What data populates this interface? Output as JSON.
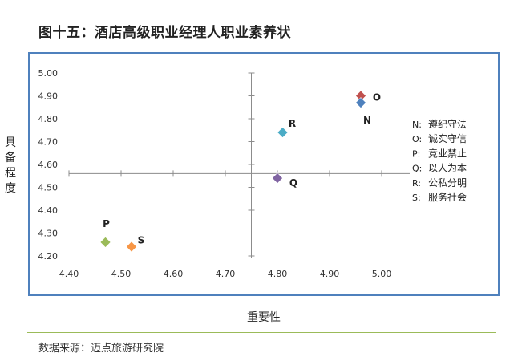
{
  "figure": {
    "title": "图十五：酒店高级职业经理人职业素养状",
    "source": "数据来源：迈点旅游研究院"
  },
  "chart_data": {
    "type": "scatter",
    "title": "",
    "xlabel": "重要性",
    "ylabel": "具备程度",
    "xlim": [
      4.4,
      5.0
    ],
    "ylim": [
      4.2,
      5.0
    ],
    "x_ticks": [
      "4.40",
      "4.50",
      "4.60",
      "4.70",
      "4.80",
      "4.90",
      "5.00"
    ],
    "y_ticks": [
      "4.20",
      "4.30",
      "4.40",
      "4.50",
      "4.60",
      "4.70",
      "4.80",
      "4.90",
      "5.00"
    ],
    "quadrant_lines": {
      "x": 4.75,
      "y": 4.56
    },
    "grid": false,
    "legend_position": "right",
    "points": [
      {
        "label": "O",
        "x": 4.96,
        "y": 4.9,
        "color": "#c0504d"
      },
      {
        "label": "N",
        "x": 4.96,
        "y": 4.87,
        "color": "#4f81bd"
      },
      {
        "label": "R",
        "x": 4.81,
        "y": 4.74,
        "color": "#4bacc6"
      },
      {
        "label": "Q",
        "x": 4.8,
        "y": 4.54,
        "color": "#8064a2"
      },
      {
        "label": "P",
        "x": 4.47,
        "y": 4.26,
        "color": "#9bbb59"
      },
      {
        "label": "S",
        "x": 4.52,
        "y": 4.24,
        "color": "#f79646"
      }
    ],
    "legend": [
      {
        "key": "N:",
        "text": "遵纪守法"
      },
      {
        "key": "O:",
        "text": "诚实守信"
      },
      {
        "key": "P:",
        "text": "竞业禁止"
      },
      {
        "key": "Q:",
        "text": "以人为本"
      },
      {
        "key": "R:",
        "text": "公私分明"
      },
      {
        "key": "S:",
        "text": "服务社会"
      }
    ]
  }
}
